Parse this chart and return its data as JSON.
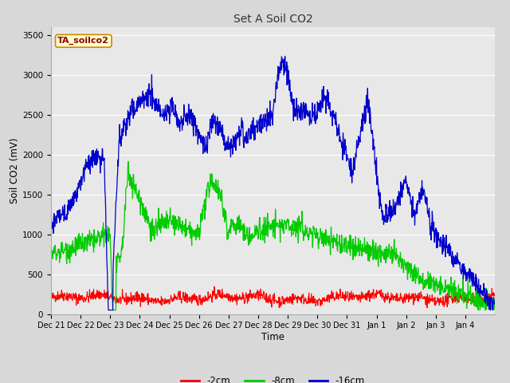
{
  "title": "Set A Soil CO2",
  "xlabel": "Time",
  "ylabel": "Soil CO2 (mV)",
  "ylim": [
    0,
    3600
  ],
  "yticks": [
    0,
    500,
    1000,
    1500,
    2000,
    2500,
    3000,
    3500
  ],
  "legend_label": "TA_soilco2",
  "series_labels": [
    "-2cm",
    "-8cm",
    "-16cm"
  ],
  "series_colors": [
    "#ff0000",
    "#00cc00",
    "#0000cc"
  ],
  "fig_bg_color": "#d8d8d8",
  "plot_bg_color": "#e8e8e8",
  "n_points": 1300,
  "duration_days": 15.0
}
